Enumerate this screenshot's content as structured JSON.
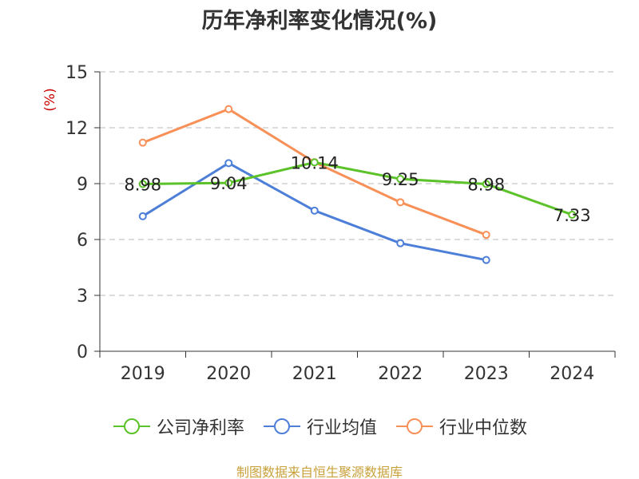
{
  "chart_data": {
    "type": "line",
    "title": "历年净利率变化情况(%)",
    "ylabel": "(%)",
    "xlabel": "",
    "categories": [
      "2019",
      "2020",
      "2021",
      "2022",
      "2023",
      "2024"
    ],
    "ylim": [
      0,
      15
    ],
    "yticks": [
      0,
      3,
      6,
      9,
      12,
      15
    ],
    "grid": true,
    "legend_position": "bottom",
    "series": [
      {
        "name": "公司净利率",
        "color": "#5cc229",
        "values": [
          8.98,
          9.04,
          10.14,
          9.25,
          8.98,
          7.33
        ],
        "labels": [
          "8.98",
          "9.04",
          "10.14",
          "9.25",
          "8.98",
          "7.33"
        ],
        "show_labels": true
      },
      {
        "name": "行业均值",
        "color": "#4d7fd8",
        "values": [
          7.25,
          10.1,
          7.55,
          5.8,
          4.9,
          null
        ],
        "show_labels": false
      },
      {
        "name": "行业中位数",
        "color": "#f89058",
        "values": [
          11.2,
          13.0,
          10.15,
          8.0,
          6.25,
          null
        ],
        "show_labels": false
      }
    ]
  },
  "source": {
    "text": "制图数据来自恒生聚源数据库",
    "color": "#c9a13c"
  },
  "axis": {
    "ylabel_color": "#cc0000",
    "text_color": "#333333",
    "grid_color": "#c8c8c8"
  }
}
